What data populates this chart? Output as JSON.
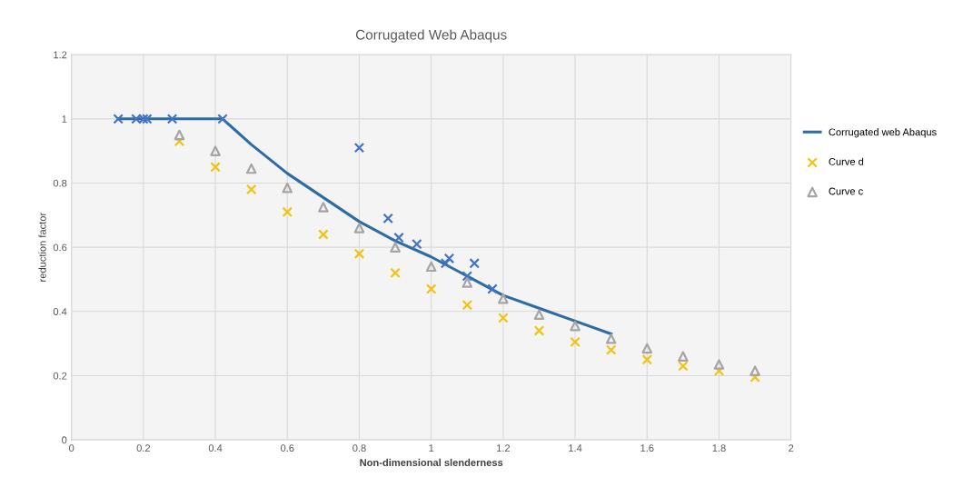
{
  "chart_data": {
    "type": "scatter",
    "title": "Corrugated Web Abaqus",
    "xlabel": "Non-dimensional slenderness",
    "ylabel": "reduction factor",
    "xlim": [
      0,
      2
    ],
    "xticks": [
      0,
      0.2,
      0.4,
      0.6,
      0.8,
      1,
      1.2,
      1.4,
      1.6,
      1.8,
      2
    ],
    "ylim": [
      0,
      1.2
    ],
    "yticks": [
      0,
      0.2,
      0.4,
      0.6,
      0.8,
      1,
      1.2
    ],
    "grid": true,
    "legend": "right",
    "series": [
      {
        "name": "Corrugated web Abaqus",
        "type": "line",
        "color": "#2e6da4",
        "marker": "none",
        "line_style": "solid",
        "x": [
          0.13,
          0.42,
          0.5,
          0.6,
          0.7,
          0.8,
          0.9,
          1.0,
          1.1,
          1.2,
          1.3,
          1.4,
          1.5
        ],
        "values": [
          1,
          1,
          0.92,
          0.83,
          0.755,
          0.68,
          0.62,
          0.57,
          0.51,
          0.45,
          0.41,
          0.37,
          0.33
        ]
      },
      {
        "color": "#4472c4",
        "marker": "cross",
        "x": [
          0.13,
          0.18,
          0.2,
          0.21,
          0.28,
          0.42,
          0.8,
          0.88,
          0.91,
          0.96,
          1.04,
          1.05,
          1.1,
          1.12,
          1.17
        ],
        "values": [
          1,
          1,
          1,
          1,
          1,
          1,
          0.91,
          0.69,
          0.63,
          0.61,
          0.55,
          0.565,
          0.51,
          0.55,
          0.47
        ]
      },
      {
        "name": "Curve d",
        "color": "#f2c314",
        "marker": "cross",
        "x": [
          0.3,
          0.4,
          0.5,
          0.6,
          0.7,
          0.8,
          0.9,
          1.0,
          1.1,
          1.2,
          1.3,
          1.4,
          1.5,
          1.6,
          1.7,
          1.8,
          1.9
        ],
        "values": [
          0.93,
          0.85,
          0.78,
          0.71,
          0.64,
          0.58,
          0.52,
          0.47,
          0.42,
          0.38,
          0.34,
          0.305,
          0.28,
          0.25,
          0.23,
          0.215,
          0.195
        ]
      },
      {
        "name": "Curve c",
        "color": "#a5a5a5",
        "marker": "triangle",
        "x": [
          0.3,
          0.4,
          0.5,
          0.6,
          0.7,
          0.8,
          0.9,
          1.0,
          1.1,
          1.2,
          1.3,
          1.4,
          1.5,
          1.6,
          1.7,
          1.8,
          1.9
        ],
        "values": [
          0.95,
          0.9,
          0.845,
          0.785,
          0.725,
          0.66,
          0.6,
          0.54,
          0.49,
          0.44,
          0.39,
          0.355,
          0.315,
          0.285,
          0.26,
          0.235,
          0.215
        ]
      }
    ]
  }
}
